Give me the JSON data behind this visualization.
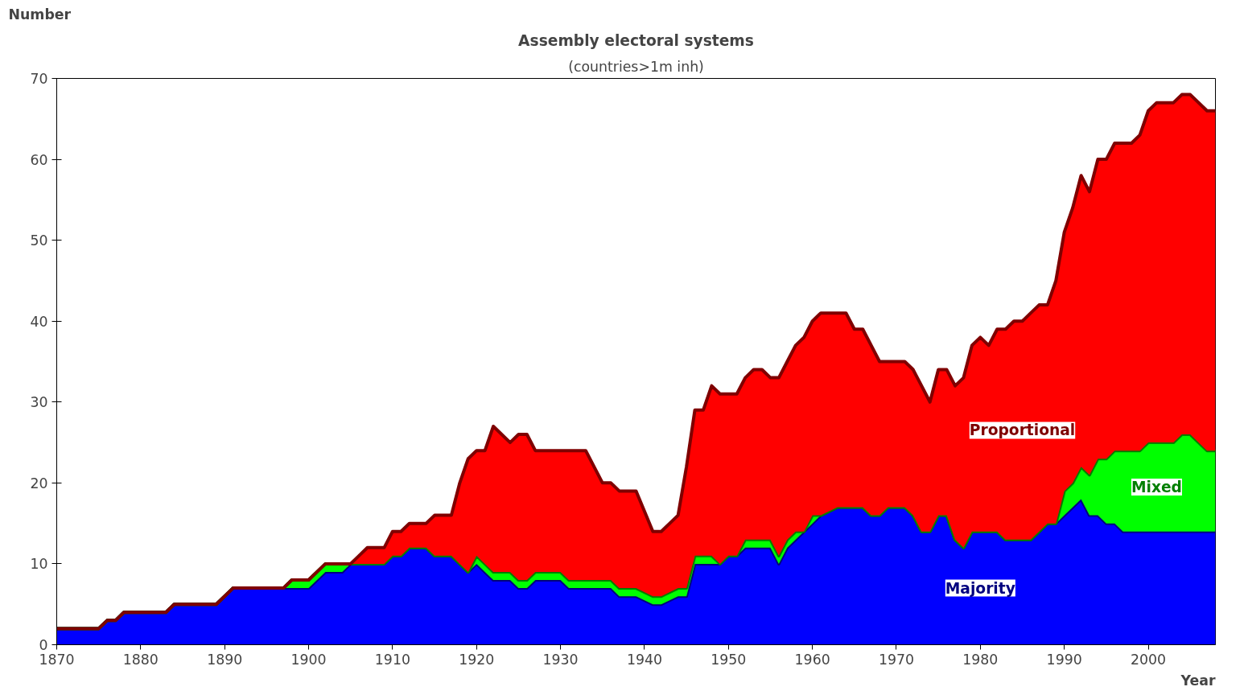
{
  "chart_data": {
    "type": "area",
    "stacked": true,
    "title": "Assembly electoral systems",
    "subtitle": "(countries>1m inh)",
    "xlabel": "Year",
    "ylabel": "Number",
    "x": [
      1870,
      1875,
      1876,
      1877,
      1878,
      1883,
      1884,
      1889,
      1891,
      1897,
      1898,
      1900,
      1902,
      1904,
      1905,
      1906,
      1907,
      1909,
      1910,
      1911,
      1912,
      1914,
      1915,
      1917,
      1918,
      1919,
      1920,
      1921,
      1922,
      1924,
      1925,
      1926,
      1927,
      1930,
      1931,
      1933,
      1935,
      1936,
      1937,
      1939,
      1941,
      1942,
      1944,
      1945,
      1946,
      1947,
      1948,
      1949,
      1950,
      1951,
      1952,
      1953,
      1954,
      1955,
      1956,
      1957,
      1958,
      1959,
      1960,
      1961,
      1963,
      1964,
      1965,
      1966,
      1967,
      1968,
      1969,
      1971,
      1972,
      1973,
      1974,
      1975,
      1976,
      1977,
      1978,
      1979,
      1980,
      1981,
      1982,
      1983,
      1984,
      1985,
      1986,
      1987,
      1988,
      1989,
      1990,
      1991,
      1992,
      1993,
      1994,
      1995,
      1996,
      1997,
      1998,
      1999,
      2000,
      2001,
      2003,
      2004,
      2005,
      2007,
      2008
    ],
    "series": [
      {
        "name": "Majority",
        "color": "#0000ff",
        "values": [
          2,
          2,
          3,
          3,
          4,
          4,
          5,
          5,
          7,
          7,
          7,
          7,
          9,
          9,
          10,
          10,
          10,
          10,
          11,
          11,
          12,
          12,
          11,
          11,
          10,
          9,
          10,
          9,
          8,
          8,
          7,
          7,
          8,
          8,
          7,
          7,
          7,
          7,
          6,
          6,
          5,
          5,
          6,
          6,
          10,
          10,
          10,
          10,
          11,
          11,
          12,
          12,
          12,
          12,
          10,
          12,
          13,
          14,
          15,
          16,
          17,
          17,
          17,
          17,
          16,
          16,
          17,
          17,
          16,
          14,
          14,
          16,
          16,
          13,
          12,
          14,
          14,
          14,
          14,
          13,
          13,
          13,
          13,
          14,
          15,
          15,
          16,
          17,
          18,
          16,
          16,
          15,
          15,
          14,
          14,
          14,
          14,
          14,
          14,
          14,
          14,
          14,
          14
        ]
      },
      {
        "name": "Mixed",
        "color": "#00ff00",
        "values": [
          0,
          0,
          0,
          0,
          0,
          0,
          0,
          0,
          0,
          0,
          1,
          1,
          1,
          1,
          0,
          0,
          0,
          0,
          0,
          0,
          0,
          0,
          0,
          0,
          0,
          0,
          1,
          1,
          1,
          1,
          1,
          1,
          1,
          1,
          1,
          1,
          1,
          1,
          1,
          1,
          1,
          1,
          1,
          1,
          1,
          1,
          1,
          0,
          0,
          0,
          1,
          1,
          1,
          1,
          1,
          1,
          1,
          0,
          1,
          0,
          0,
          0,
          0,
          0,
          0,
          0,
          0,
          0,
          0,
          0,
          0,
          0,
          0,
          0,
          0,
          0,
          0,
          0,
          0,
          0,
          0,
          0,
          0,
          0,
          0,
          0,
          3,
          3,
          4,
          5,
          7,
          8,
          9,
          10,
          10,
          10,
          11,
          11,
          11,
          12,
          12,
          10,
          10
        ]
      },
      {
        "name": "Proportional",
        "color": "#ff0000",
        "values": [
          0,
          0,
          0,
          0,
          0,
          0,
          0,
          0,
          0,
          0,
          0,
          0,
          0,
          0,
          0,
          1,
          2,
          2,
          3,
          3,
          3,
          3,
          5,
          5,
          10,
          14,
          13,
          14,
          18,
          16,
          18,
          18,
          15,
          15,
          16,
          16,
          12,
          12,
          12,
          12,
          8,
          8,
          9,
          15,
          18,
          18,
          21,
          21,
          20,
          20,
          20,
          21,
          21,
          20,
          22,
          22,
          23,
          24,
          24,
          25,
          24,
          24,
          22,
          22,
          21,
          19,
          18,
          18,
          18,
          18,
          16,
          18,
          18,
          19,
          21,
          23,
          24,
          23,
          25,
          26,
          27,
          27,
          28,
          28,
          27,
          30,
          32,
          34,
          36,
          35,
          37,
          37,
          38,
          38,
          38,
          39,
          41,
          42,
          42,
          42,
          42,
          42,
          42
        ]
      }
    ],
    "xlim": [
      1870,
      2008
    ],
    "ylim": [
      0,
      70
    ],
    "xticks": [
      1870,
      1880,
      1890,
      1900,
      1910,
      1920,
      1930,
      1940,
      1950,
      1960,
      1970,
      1980,
      1990,
      2000
    ],
    "yticks": [
      0,
      10,
      20,
      30,
      40,
      50,
      60,
      70
    ],
    "grid": false
  }
}
